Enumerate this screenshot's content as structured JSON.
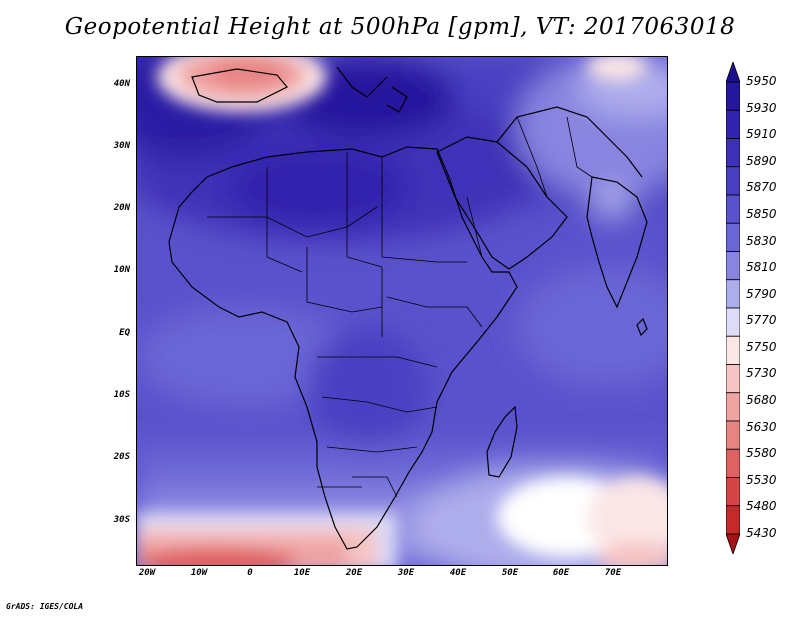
{
  "title": "Geopotential Height at 500hPa [gpm], VT: 2017063018",
  "credit": "GrADS: IGES/COLA",
  "lat_labels": [
    "40N",
    "30N",
    "20N",
    "10N",
    "EQ",
    "10S",
    "20S",
    "30S"
  ],
  "lon_labels": [
    "20W",
    "10W",
    "0",
    "10E",
    "20E",
    "30E",
    "40E",
    "50E",
    "60E",
    "70E"
  ],
  "colorbar": {
    "levels": [
      "5950",
      "5930",
      "5910",
      "5890",
      "5870",
      "5850",
      "5830",
      "5810",
      "5790",
      "5770",
      "5750",
      "5730",
      "5680",
      "5630",
      "5580",
      "5530",
      "5480",
      "5430"
    ],
    "colors": [
      "#1a0f8c",
      "#26169e",
      "#3322ad",
      "#3f30b8",
      "#4a3fc2",
      "#5a52cc",
      "#6b66d6",
      "#8884e0",
      "#aeadec",
      "#dcdcf7",
      "#fbe6e6",
      "#f6c4c4",
      "#efa3a3",
      "#e88383",
      "#df6262",
      "#d44545",
      "#c42a2a",
      "#a71414"
    ]
  },
  "map": {
    "lon_range": [
      -22,
      80
    ],
    "lat_range": [
      -37,
      45
    ],
    "high_color": "#2a1ca4",
    "low_color": "#d94c4c"
  }
}
